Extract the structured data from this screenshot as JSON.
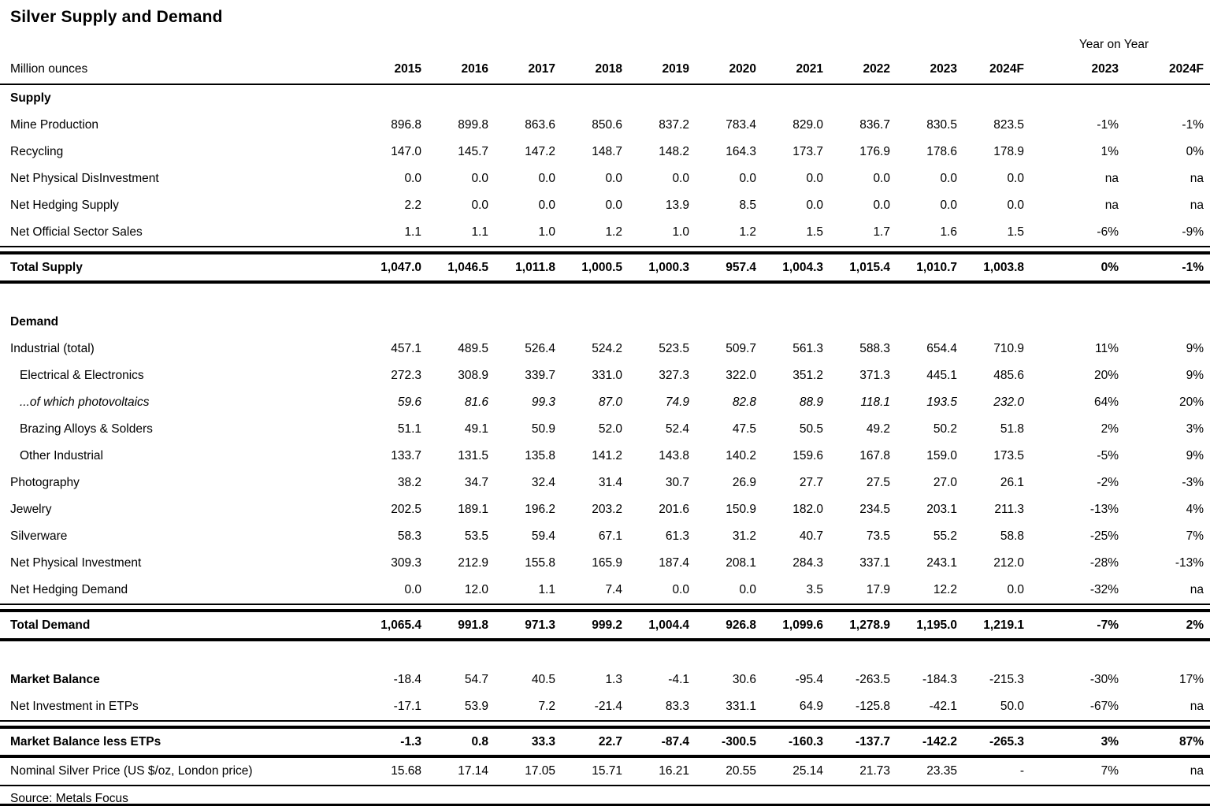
{
  "title": "Silver Supply and Demand",
  "unit_label": "Million ounces",
  "year_on_year_label": "Year on Year",
  "source_label": "Source: Metals Focus",
  "columns": [
    "2015",
    "2016",
    "2017",
    "2018",
    "2019",
    "2020",
    "2021",
    "2022",
    "2023",
    "2024F"
  ],
  "yoy_columns": [
    "2023",
    "2024F"
  ],
  "rows": [
    {
      "type": "section",
      "label": "Supply"
    },
    {
      "type": "data",
      "label": "Mine Production",
      "values": [
        "896.8",
        "899.8",
        "863.6",
        "850.6",
        "837.2",
        "783.4",
        "829.0",
        "836.7",
        "830.5",
        "823.5"
      ],
      "yoy": [
        "-1%",
        "-1%"
      ]
    },
    {
      "type": "data",
      "label": "Recycling",
      "values": [
        "147.0",
        "145.7",
        "147.2",
        "148.7",
        "148.2",
        "164.3",
        "173.7",
        "176.9",
        "178.6",
        "178.9"
      ],
      "yoy": [
        "1%",
        "0%"
      ]
    },
    {
      "type": "data",
      "label": "Net Physical DisInvestment",
      "values": [
        "0.0",
        "0.0",
        "0.0",
        "0.0",
        "0.0",
        "0.0",
        "0.0",
        "0.0",
        "0.0",
        "0.0"
      ],
      "yoy": [
        "na",
        "na"
      ]
    },
    {
      "type": "data",
      "label": "Net Hedging Supply",
      "values": [
        "2.2",
        "0.0",
        "0.0",
        "0.0",
        "13.9",
        "8.5",
        "0.0",
        "0.0",
        "0.0",
        "0.0"
      ],
      "yoy": [
        "na",
        "na"
      ]
    },
    {
      "type": "data",
      "label": "Net Official Sector Sales",
      "values": [
        "1.1",
        "1.1",
        "1.0",
        "1.2",
        "1.0",
        "1.2",
        "1.5",
        "1.7",
        "1.6",
        "1.5"
      ],
      "yoy": [
        "-6%",
        "-9%"
      ],
      "cls": "rule-b"
    },
    {
      "type": "gap",
      "h": 5
    },
    {
      "type": "total",
      "label": "Total Supply",
      "values": [
        "1,047.0",
        "1,046.5",
        "1,011.8",
        "1,000.5",
        "1,000.3",
        "957.4",
        "1,004.3",
        "1,015.4",
        "1,010.7",
        "1,003.8"
      ],
      "yoy": [
        "0%",
        "-1%"
      ]
    },
    {
      "type": "gap",
      "h": 32
    },
    {
      "type": "section",
      "label": "Demand"
    },
    {
      "type": "data",
      "label": "Industrial (total)",
      "values": [
        "457.1",
        "489.5",
        "526.4",
        "524.2",
        "523.5",
        "509.7",
        "561.3",
        "588.3",
        "654.4",
        "710.9"
      ],
      "yoy": [
        "11%",
        "9%"
      ]
    },
    {
      "type": "data",
      "label": "Electrical & Electronics",
      "values": [
        "272.3",
        "308.9",
        "339.7",
        "331.0",
        "327.3",
        "322.0",
        "351.2",
        "371.3",
        "445.1",
        "485.6"
      ],
      "yoy": [
        "20%",
        "9%"
      ],
      "cls": "indent"
    },
    {
      "type": "data",
      "label": "...of which photovoltaics",
      "values": [
        "59.6",
        "81.6",
        "99.3",
        "87.0",
        "74.9",
        "82.8",
        "88.9",
        "118.1",
        "193.5",
        "232.0"
      ],
      "yoy": [
        "64%",
        "20%"
      ],
      "cls": "indent italic"
    },
    {
      "type": "data",
      "label": "Brazing Alloys & Solders",
      "values": [
        "51.1",
        "49.1",
        "50.9",
        "52.0",
        "52.4",
        "47.5",
        "50.5",
        "49.2",
        "50.2",
        "51.8"
      ],
      "yoy": [
        "2%",
        "3%"
      ],
      "cls": "indent"
    },
    {
      "type": "data",
      "label": "Other Industrial",
      "values": [
        "133.7",
        "131.5",
        "135.8",
        "141.2",
        "143.8",
        "140.2",
        "159.6",
        "167.8",
        "159.0",
        "173.5"
      ],
      "yoy": [
        "-5%",
        "9%"
      ],
      "cls": "indent"
    },
    {
      "type": "data",
      "label": "Photography",
      "values": [
        "38.2",
        "34.7",
        "32.4",
        "31.4",
        "30.7",
        "26.9",
        "27.7",
        "27.5",
        "27.0",
        "26.1"
      ],
      "yoy": [
        "-2%",
        "-3%"
      ]
    },
    {
      "type": "data",
      "label": "Jewelry",
      "values": [
        "202.5",
        "189.1",
        "196.2",
        "203.2",
        "201.6",
        "150.9",
        "182.0",
        "234.5",
        "203.1",
        "211.3"
      ],
      "yoy": [
        "-13%",
        "4%"
      ]
    },
    {
      "type": "data",
      "label": "Silverware",
      "values": [
        "58.3",
        "53.5",
        "59.4",
        "67.1",
        "61.3",
        "31.2",
        "40.7",
        "73.5",
        "55.2",
        "58.8"
      ],
      "yoy": [
        "-25%",
        "7%"
      ]
    },
    {
      "type": "data",
      "label": "Net Physical Investment",
      "values": [
        "309.3",
        "212.9",
        "155.8",
        "165.9",
        "187.4",
        "208.1",
        "284.3",
        "337.1",
        "243.1",
        "212.0"
      ],
      "yoy": [
        "-28%",
        "-13%"
      ]
    },
    {
      "type": "data",
      "label": "Net Hedging Demand",
      "values": [
        "0.0",
        "12.0",
        "1.1",
        "7.4",
        "0.0",
        "0.0",
        "3.5",
        "17.9",
        "12.2",
        "0.0"
      ],
      "yoy": [
        "-32%",
        "na"
      ],
      "cls": "rule-b"
    },
    {
      "type": "gap",
      "h": 5
    },
    {
      "type": "total",
      "label": "Total Demand",
      "values": [
        "1,065.4",
        "991.8",
        "971.3",
        "999.2",
        "1,004.4",
        "926.8",
        "1,099.6",
        "1,278.9",
        "1,195.0",
        "1,219.1"
      ],
      "yoy": [
        "-7%",
        "2%"
      ]
    },
    {
      "type": "gap",
      "h": 32
    },
    {
      "type": "data",
      "label": "Market Balance",
      "values": [
        "-18.4",
        "54.7",
        "40.5",
        "1.3",
        "-4.1",
        "30.6",
        "-95.4",
        "-263.5",
        "-184.3",
        "-215.3"
      ],
      "yoy": [
        "-30%",
        "17%"
      ],
      "cls": "bold-label"
    },
    {
      "type": "data",
      "label": "Net Investment in ETPs",
      "values": [
        "-17.1",
        "53.9",
        "7.2",
        "-21.4",
        "83.3",
        "331.1",
        "64.9",
        "-125.8",
        "-42.1",
        "50.0"
      ],
      "yoy": [
        "-67%",
        "na"
      ],
      "cls": "rule-b"
    },
    {
      "type": "gap",
      "h": 5
    },
    {
      "type": "total",
      "label": "Market Balance less ETPs",
      "values": [
        "-1.3",
        "0.8",
        "33.3",
        "22.7",
        "-87.4",
        "-300.5",
        "-160.3",
        "-137.7",
        "-142.2",
        "-265.3"
      ],
      "yoy": [
        "3%",
        "87%"
      ]
    },
    {
      "type": "price",
      "label": "Nominal Silver Price (US $/oz, London price)",
      "values": [
        "15.68",
        "17.14",
        "17.05",
        "15.71",
        "16.21",
        "20.55",
        "25.14",
        "21.73",
        "23.35",
        "-"
      ],
      "yoy": [
        "7%",
        "na"
      ]
    }
  ]
}
